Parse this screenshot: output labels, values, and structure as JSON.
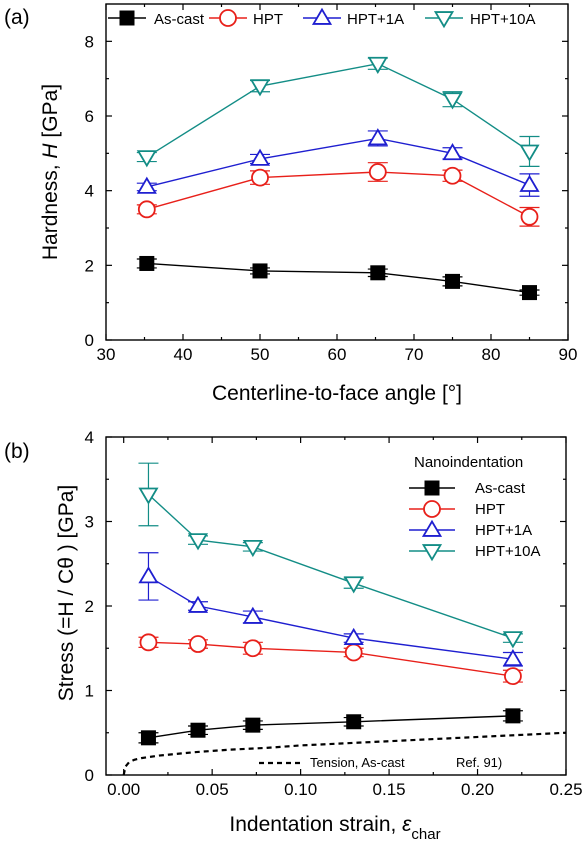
{
  "chart_data": [
    {
      "type": "line",
      "panel_label": "(a)",
      "xlabel": "Centerline-to-face angle [°]",
      "ylabel_prefix": "Hardness, ",
      "ylabel_var": "H",
      "ylabel_unit": " [GPa]",
      "xlim": [
        30,
        90
      ],
      "ylim": [
        0,
        9
      ],
      "xticks": [
        30,
        40,
        50,
        60,
        70,
        80,
        90
      ],
      "yticks": [
        0,
        2,
        4,
        6,
        8
      ],
      "xtick_labels": [
        "30",
        "40",
        "50",
        "60",
        "70",
        "80",
        "90"
      ],
      "ytick_labels": [
        "0",
        "2",
        "4",
        "6",
        "8"
      ],
      "legend_position": "top",
      "series": [
        {
          "name": "As-cast",
          "color": "#000000",
          "marker": "square-filled",
          "x": [
            35.3,
            50,
            65.3,
            75,
            85
          ],
          "y": [
            2.05,
            1.85,
            1.8,
            1.57,
            1.27
          ],
          "err": [
            0.12,
            0.08,
            0.1,
            0.12,
            0.07
          ]
        },
        {
          "name": "HPT",
          "color": "#e8201a",
          "marker": "circle",
          "x": [
            35.3,
            50,
            65.3,
            75,
            85
          ],
          "y": [
            3.5,
            4.35,
            4.5,
            4.4,
            3.3
          ],
          "err": [
            0.12,
            0.18,
            0.25,
            0.15,
            0.25
          ]
        },
        {
          "name": "HPT+1A",
          "color": "#1f1fd0",
          "marker": "triangle-up",
          "x": [
            35.3,
            50,
            65.3,
            75,
            85
          ],
          "y": [
            4.1,
            4.85,
            5.4,
            5.0,
            4.15
          ],
          "err": [
            0.1,
            0.12,
            0.2,
            0.15,
            0.3
          ]
        },
        {
          "name": "HPT+10A",
          "color": "#138d86",
          "marker": "triangle-down",
          "x": [
            35.3,
            50,
            65.3,
            75,
            85
          ],
          "y": [
            4.9,
            6.8,
            7.4,
            6.45,
            5.05
          ],
          "err": [
            0.12,
            0.15,
            0.15,
            0.2,
            0.4
          ]
        }
      ]
    },
    {
      "type": "line",
      "panel_label": "(b)",
      "xlabel_prefix": "Indentation strain, ",
      "xlabel_var": "ε",
      "xlabel_sub": "char",
      "ylabel": "Stress (=H / Cθ ) [GPa]",
      "xlim": [
        -0.01,
        0.25
      ],
      "ylim": [
        0,
        4
      ],
      "xticks": [
        0.0,
        0.05,
        0.1,
        0.15,
        0.2,
        0.25
      ],
      "yticks": [
        0,
        1,
        2,
        3,
        4
      ],
      "xtick_labels": [
        "0.00",
        "0.05",
        "0.10",
        "0.15",
        "0.20",
        "0.25"
      ],
      "ytick_labels": [
        "0",
        "1",
        "2",
        "3",
        "4"
      ],
      "legend_title": "Nanoindentation",
      "legend_position": "top-right",
      "series": [
        {
          "name": "As-cast",
          "color": "#000000",
          "marker": "square-filled",
          "x": [
            0.014,
            0.042,
            0.073,
            0.13,
            0.22
          ],
          "y": [
            0.44,
            0.53,
            0.59,
            0.63,
            0.7
          ],
          "err": [
            0.06,
            0.05,
            0.05,
            0.05,
            0.06
          ]
        },
        {
          "name": "HPT",
          "color": "#e8201a",
          "marker": "circle",
          "x": [
            0.014,
            0.042,
            0.073,
            0.13,
            0.22
          ],
          "y": [
            1.57,
            1.55,
            1.5,
            1.45,
            1.17
          ],
          "err": [
            0.06,
            0.05,
            0.07,
            0.05,
            0.07
          ]
        },
        {
          "name": "HPT+1A",
          "color": "#1f1fd0",
          "marker": "triangle-up",
          "x": [
            0.014,
            0.042,
            0.073,
            0.13,
            0.22
          ],
          "y": [
            2.35,
            2.0,
            1.87,
            1.62,
            1.37
          ],
          "err": [
            0.28,
            0.05,
            0.07,
            0.05,
            0.08
          ]
        },
        {
          "name": "HPT+10A",
          "color": "#138d86",
          "marker": "triangle-down",
          "x": [
            0.014,
            0.042,
            0.073,
            0.13,
            0.22
          ],
          "y": [
            3.32,
            2.78,
            2.7,
            2.27,
            1.62
          ],
          "err": [
            0.37,
            0.05,
            0.05,
            0.06,
            0.05
          ]
        }
      ],
      "reference_curve": {
        "name": "Tension, As-cast",
        "ref": "Ref. 91)",
        "style": "dashed",
        "color": "#000000",
        "x": [
          0.0,
          0.001,
          0.003,
          0.006,
          0.01,
          0.02,
          0.04,
          0.06,
          0.08,
          0.1,
          0.12,
          0.15,
          0.18,
          0.21,
          0.25
        ],
        "y": [
          0.0,
          0.1,
          0.15,
          0.18,
          0.2,
          0.23,
          0.27,
          0.3,
          0.32,
          0.35,
          0.37,
          0.4,
          0.43,
          0.46,
          0.5
        ]
      }
    }
  ]
}
